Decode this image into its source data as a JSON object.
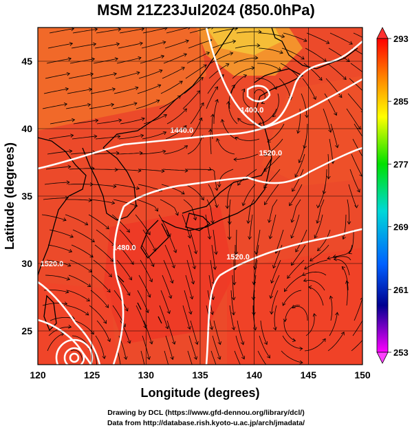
{
  "title": "MSM 21Z23Jul2024 (850.0hPa)",
  "x_axis": {
    "label": "Longitude (degrees)",
    "ticks": [
      "120",
      "125",
      "130",
      "135",
      "140",
      "145",
      "150"
    ],
    "range": [
      120,
      150
    ]
  },
  "y_axis": {
    "label": "Latitude  (degrees)",
    "ticks": [
      "25",
      "30",
      "35",
      "40",
      "45"
    ],
    "range": [
      22.5,
      47.5
    ]
  },
  "colorbar": {
    "labels": [
      "293",
      "285",
      "277",
      "269",
      "261",
      "253"
    ],
    "min": 253,
    "max": 293
  },
  "contour_labels": [
    {
      "text": "1400.0",
      "lon": 139.8,
      "lat": 41.2
    },
    {
      "text": "1440.0",
      "lon": 133.3,
      "lat": 39.7
    },
    {
      "text": "1480.0",
      "lon": 128.0,
      "lat": 31.0
    },
    {
      "text": "1520.0",
      "lon": 138.5,
      "lat": 30.3
    },
    {
      "text": "1520.0",
      "lon": 141.5,
      "lat": 38.0
    },
    {
      "text": "1520.0",
      "lon": 121.3,
      "lat": 29.8
    }
  ],
  "credits": {
    "line1": "Drawing by DCL (https://www.gfd-dennou.org/library/dcl/)",
    "line2": "Data from http://database.rish.kyoto-u.ac.jp/arch/jmadata/"
  },
  "colors": {
    "field_base": "#ec4a2a",
    "field_warm": "#f23b25",
    "field_cool": "#f37a2a",
    "field_yellow": "#f5c63a",
    "contour": "#ffffff",
    "streamline": "#000000"
  }
}
